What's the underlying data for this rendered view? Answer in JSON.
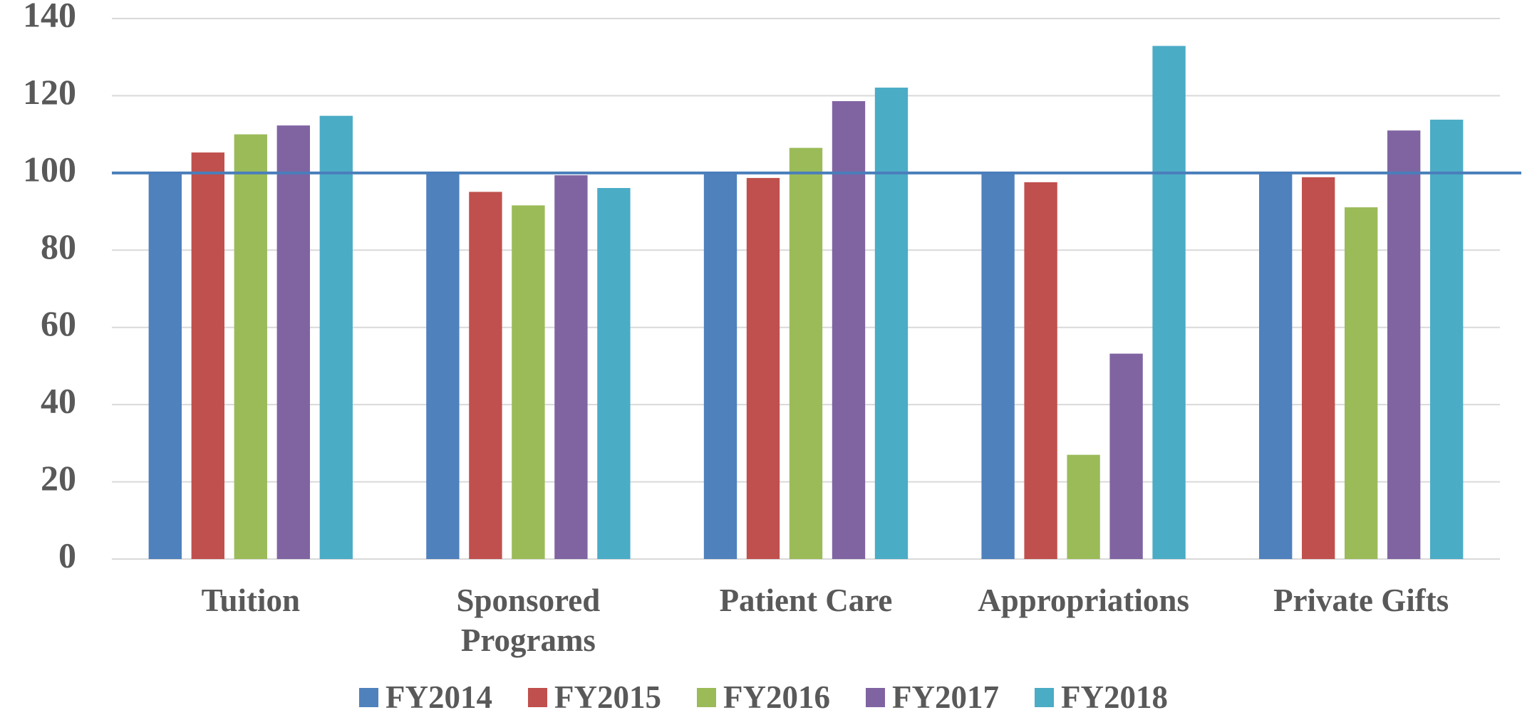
{
  "chart_data": {
    "type": "bar",
    "categories": [
      "Tuition",
      "Sponsored Programs",
      "Patient Care",
      "Appropriations",
      "Private Gifts"
    ],
    "series": [
      {
        "name": "FY2014",
        "color": "#4f81bd",
        "values": [
          100,
          100,
          100,
          100,
          100
        ]
      },
      {
        "name": "FY2015",
        "color": "#c0504d",
        "values": [
          105.3,
          95.1,
          98.7,
          97.6,
          98.9
        ]
      },
      {
        "name": "FY2016",
        "color": "#9bbb59",
        "values": [
          110,
          91.6,
          106.5,
          27,
          91.1
        ]
      },
      {
        "name": "FY2017",
        "color": "#8064a2",
        "values": [
          112.3,
          99.4,
          118.6,
          53.2,
          111
        ]
      },
      {
        "name": "FY2018",
        "color": "#4bacc6",
        "values": [
          114.8,
          96.1,
          122.1,
          132.9,
          113.8
        ]
      }
    ],
    "reference_line": {
      "value": 100,
      "color": "#4a7ebb"
    },
    "ylim": [
      0,
      140
    ],
    "yticks": [
      0,
      20,
      40,
      60,
      80,
      100,
      120,
      140
    ],
    "grid": true,
    "legend": "bottom"
  }
}
